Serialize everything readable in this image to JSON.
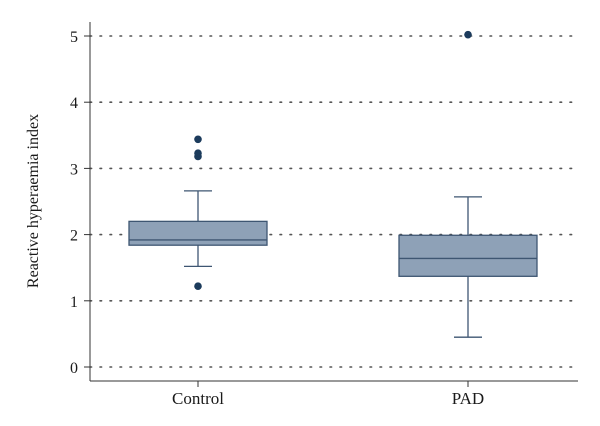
{
  "chart_data": {
    "type": "box",
    "title": "",
    "xlabel": "",
    "ylabel": "Reactive hyperaemia index",
    "ylim": [
      0,
      5
    ],
    "yticks": [
      0,
      1,
      2,
      3,
      4,
      5
    ],
    "grid": "horizontal-dotted",
    "categories": [
      "Control",
      "PAD"
    ],
    "boxes": [
      {
        "category": "Control",
        "whisker_low": 1.52,
        "q1": 1.84,
        "median": 1.92,
        "q3": 2.2,
        "whisker_high": 2.66,
        "outliers": [
          1.22,
          3.18,
          3.23,
          3.44
        ]
      },
      {
        "category": "PAD",
        "whisker_low": 0.45,
        "q1": 1.37,
        "median": 1.64,
        "q3": 1.99,
        "whisker_high": 2.57,
        "outliers": [
          5.02
        ]
      }
    ],
    "colors": {
      "box_fill": "#8ea1b7",
      "box_stroke": "#3e5672",
      "outlier": "#1c3b5c",
      "grid": "#555555",
      "axis": "#333333"
    }
  }
}
